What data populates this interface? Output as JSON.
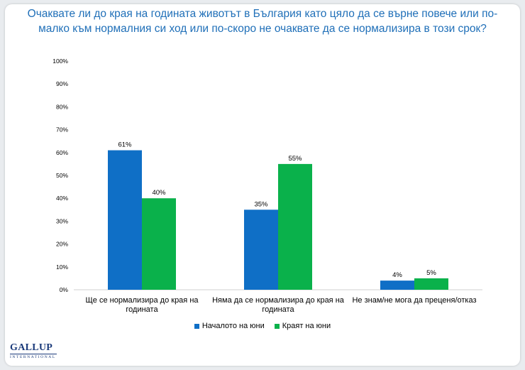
{
  "title": "Очаквате ли до края на годината животът в България като цяло да се върне повече или по-малко към нормалния си ход или по-скоро не очаквате да се нормализира в този срок?",
  "brand": {
    "name": "GALLUP",
    "sub": "INTERNATIONAL"
  },
  "colors": {
    "series1": "#0f6fc6",
    "series2": "#0ab14b",
    "title": "#1f6fb8"
  },
  "chart_data": {
    "type": "bar",
    "title": "Очаквате ли до края на годината животът в България като цяло да се върне повече или по-малко към нормалния си ход или по-скоро не очаквате да се нормализира в този срок?",
    "categories": [
      [
        "Ще се нормализира до края на",
        "годината"
      ],
      [
        "Няма да се нормализира до края на",
        "годината"
      ],
      [
        "Не знам/не мога да преценя/отказ"
      ]
    ],
    "series": [
      {
        "name": "Началото на юни",
        "values": [
          61,
          35,
          4
        ]
      },
      {
        "name": "Краят на юни",
        "values": [
          40,
          55,
          5
        ]
      }
    ],
    "ylim": [
      0,
      100
    ],
    "ytick_step": 10,
    "value_suffix": "%",
    "grid": false,
    "legend": "bottom-center"
  }
}
